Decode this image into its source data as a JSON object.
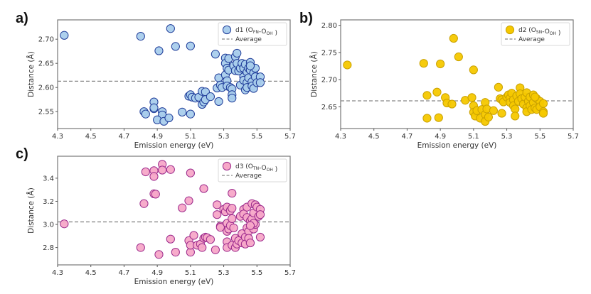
{
  "panels": [
    {
      "label": "a)"
    },
    {
      "label": "b)"
    },
    {
      "label": "c)"
    }
  ],
  "chart_data": [
    {
      "id": "a",
      "type": "scatter",
      "xlabel": "Emission energy (eV)",
      "ylabel": "Distance (Å)",
      "xlim": [
        4.3,
        5.7
      ],
      "ylim": [
        2.515,
        2.74
      ],
      "xticks": [
        "4.3",
        "4.5",
        "4.7",
        "4.9",
        "5.1",
        "5.3",
        "5.5",
        "5.7"
      ],
      "xtick_values": [
        4.3,
        4.5,
        4.7,
        4.9,
        5.1,
        5.3,
        5.5,
        5.7
      ],
      "yticks": [
        "2.55",
        "2.60",
        "2.65",
        "2.70"
      ],
      "ytick_values": [
        2.55,
        2.6,
        2.65,
        2.7
      ],
      "legend": {
        "position": "top-right",
        "series_label": "d1 (O",
        "sub1": "FN",
        "mid": "-O",
        "sub2": "OH",
        "end": " )",
        "average_label": "Average"
      },
      "average": 2.613,
      "colors": {
        "fill": "#a9cdec",
        "edge": "#1f3c99",
        "average": "#888888"
      },
      "grid": false,
      "points": [
        [
          4.34,
          2.708
        ],
        [
          4.8,
          2.706
        ],
        [
          4.98,
          2.722
        ],
        [
          4.91,
          2.676
        ],
        [
          5.01,
          2.685
        ],
        [
          5.1,
          2.686
        ],
        [
          4.88,
          2.57
        ],
        [
          4.82,
          2.55
        ],
        [
          4.83,
          2.545
        ],
        [
          4.88,
          2.556
        ],
        [
          4.88,
          2.558
        ],
        [
          4.93,
          2.55
        ],
        [
          4.93,
          2.543
        ],
        [
          4.9,
          2.533
        ],
        [
          4.94,
          2.53
        ],
        [
          4.97,
          2.537
        ],
        [
          5.05,
          2.549
        ],
        [
          5.1,
          2.545
        ],
        [
          5.09,
          2.582
        ],
        [
          5.1,
          2.585
        ],
        [
          5.11,
          2.58
        ],
        [
          5.13,
          2.578
        ],
        [
          5.15,
          2.58
        ],
        [
          5.17,
          2.592
        ],
        [
          5.17,
          2.565
        ],
        [
          5.18,
          2.57
        ],
        [
          5.19,
          2.591
        ],
        [
          5.19,
          2.575
        ],
        [
          5.22,
          2.581
        ],
        [
          5.25,
          2.669
        ],
        [
          5.26,
          2.599
        ],
        [
          5.27,
          2.62
        ],
        [
          5.27,
          2.571
        ],
        [
          5.28,
          2.605
        ],
        [
          5.29,
          2.6
        ],
        [
          5.31,
          2.661
        ],
        [
          5.31,
          2.65
        ],
        [
          5.31,
          2.626
        ],
        [
          5.32,
          2.64
        ],
        [
          5.32,
          2.614
        ],
        [
          5.32,
          2.603
        ],
        [
          5.33,
          2.66
        ],
        [
          5.33,
          2.636
        ],
        [
          5.34,
          2.6
        ],
        [
          5.35,
          2.597
        ],
        [
          5.35,
          2.585
        ],
        [
          5.35,
          2.578
        ],
        [
          5.36,
          2.645
        ],
        [
          5.37,
          2.664
        ],
        [
          5.37,
          2.635
        ],
        [
          5.38,
          2.671
        ],
        [
          5.38,
          2.65
        ],
        [
          5.39,
          2.634
        ],
        [
          5.4,
          2.64
        ],
        [
          5.4,
          2.605
        ],
        [
          5.41,
          2.65
        ],
        [
          5.42,
          2.64
        ],
        [
          5.42,
          2.622
        ],
        [
          5.42,
          2.615
        ],
        [
          5.43,
          2.595
        ],
        [
          5.43,
          2.648
        ],
        [
          5.44,
          2.632
        ],
        [
          5.44,
          2.61
        ],
        [
          5.44,
          2.6
        ],
        [
          5.45,
          2.64
        ],
        [
          5.45,
          2.62
        ],
        [
          5.46,
          2.652
        ],
        [
          5.46,
          2.636
        ],
        [
          5.47,
          2.612
        ],
        [
          5.47,
          2.603
        ],
        [
          5.48,
          2.63
        ],
        [
          5.48,
          2.598
        ],
        [
          5.49,
          2.64
        ],
        [
          5.49,
          2.622
        ],
        [
          5.5,
          2.61
        ],
        [
          5.52,
          2.622
        ],
        [
          5.52,
          2.61
        ],
        [
          5.46,
          2.645
        ]
      ]
    },
    {
      "id": "b",
      "type": "scatter",
      "xlabel": "Emission energy (eV)",
      "ylabel": "Distance (Å)",
      "xlim": [
        4.3,
        5.7
      ],
      "ylim": [
        2.61,
        2.81
      ],
      "xticks": [
        "4.3",
        "4.5",
        "4.7",
        "4.9",
        "5.1",
        "5.3",
        "5.5",
        "5.7"
      ],
      "xtick_values": [
        4.3,
        4.5,
        4.7,
        4.9,
        5.1,
        5.3,
        5.5,
        5.7
      ],
      "yticks": [
        "2.65",
        "2.70",
        "2.75",
        "2.80"
      ],
      "ytick_values": [
        2.65,
        2.7,
        2.75,
        2.8
      ],
      "legend": {
        "position": "top-right",
        "series_label": "d2 (O",
        "sub1": "SN",
        "mid": "-O",
        "sub2": "OH",
        "end": " )",
        "average_label": "Average"
      },
      "average": 2.661,
      "colors": {
        "fill": "#f5c800",
        "edge": "#c9a100",
        "average": "#888888"
      },
      "grid": false,
      "points": [
        [
          4.34,
          2.727
        ],
        [
          4.8,
          2.73
        ],
        [
          4.9,
          2.729
        ],
        [
          4.98,
          2.776
        ],
        [
          5.01,
          2.742
        ],
        [
          5.1,
          2.718
        ],
        [
          4.82,
          2.671
        ],
        [
          4.88,
          2.677
        ],
        [
          4.93,
          2.667
        ],
        [
          4.94,
          2.657
        ],
        [
          4.97,
          2.655
        ],
        [
          4.82,
          2.629
        ],
        [
          4.89,
          2.63
        ],
        [
          5.05,
          2.662
        ],
        [
          5.09,
          2.667
        ],
        [
          5.1,
          2.652
        ],
        [
          5.1,
          2.64
        ],
        [
          5.11,
          2.633
        ],
        [
          5.12,
          2.643
        ],
        [
          5.14,
          2.629
        ],
        [
          5.15,
          2.645
        ],
        [
          5.17,
          2.658
        ],
        [
          5.17,
          2.636
        ],
        [
          5.17,
          2.623
        ],
        [
          5.18,
          2.646
        ],
        [
          5.19,
          2.631
        ],
        [
          5.22,
          2.643
        ],
        [
          5.25,
          2.686
        ],
        [
          5.26,
          2.665
        ],
        [
          5.27,
          2.663
        ],
        [
          5.27,
          2.638
        ],
        [
          5.28,
          2.659
        ],
        [
          5.3,
          2.668
        ],
        [
          5.31,
          2.672
        ],
        [
          5.32,
          2.666
        ],
        [
          5.32,
          2.658
        ],
        [
          5.33,
          2.675
        ],
        [
          5.34,
          2.663
        ],
        [
          5.34,
          2.652
        ],
        [
          5.35,
          2.646
        ],
        [
          5.35,
          2.633
        ],
        [
          5.36,
          2.67
        ],
        [
          5.37,
          2.66
        ],
        [
          5.38,
          2.685
        ],
        [
          5.38,
          2.674
        ],
        [
          5.39,
          2.665
        ],
        [
          5.4,
          2.655
        ],
        [
          5.41,
          2.668
        ],
        [
          5.42,
          2.676
        ],
        [
          5.42,
          2.648
        ],
        [
          5.42,
          2.641
        ],
        [
          5.43,
          2.66
        ],
        [
          5.44,
          2.668
        ],
        [
          5.44,
          2.652
        ],
        [
          5.45,
          2.645
        ],
        [
          5.46,
          2.672
        ],
        [
          5.46,
          2.658
        ],
        [
          5.47,
          2.648
        ],
        [
          5.48,
          2.665
        ],
        [
          5.48,
          2.645
        ],
        [
          5.5,
          2.66
        ],
        [
          5.5,
          2.65
        ],
        [
          5.52,
          2.656
        ],
        [
          5.52,
          2.641
        ],
        [
          5.52,
          2.638
        ],
        [
          5.47,
          2.668
        ]
      ]
    },
    {
      "id": "c",
      "type": "scatter",
      "xlabel": "Emission energy (eV)",
      "ylabel": "Distance (Å)",
      "xlim": [
        4.3,
        5.7
      ],
      "ylim": [
        2.65,
        3.59
      ],
      "xticks": [
        "4.3",
        "4.5",
        "4.7",
        "4.9",
        "5.1",
        "5.3",
        "5.5",
        "5.7"
      ],
      "xtick_values": [
        4.3,
        4.5,
        4.7,
        4.9,
        5.1,
        5.3,
        5.5,
        5.7
      ],
      "yticks": [
        "2.8",
        "3.0",
        "3.2",
        "3.4"
      ],
      "ytick_values": [
        2.8,
        3.0,
        3.2,
        3.4
      ],
      "legend": {
        "position": "top-right",
        "series_label": "d3 (O",
        "sub1": "TN",
        "mid": "-O",
        "sub2": "OH",
        "end": " )",
        "average_label": "Average"
      },
      "average": 3.022,
      "colors": {
        "fill": "#f7a8c8",
        "edge": "#9c2a8c",
        "average": "#888888"
      },
      "grid": false,
      "points": [
        [
          4.34,
          3.005
        ],
        [
          4.83,
          3.455
        ],
        [
          4.88,
          3.465
        ],
        [
          4.88,
          3.415
        ],
        [
          4.93,
          3.52
        ],
        [
          4.93,
          3.47
        ],
        [
          4.98,
          3.475
        ],
        [
          5.1,
          3.445
        ],
        [
          4.88,
          3.265
        ],
        [
          4.89,
          3.262
        ],
        [
          4.82,
          3.18
        ],
        [
          5.05,
          3.143
        ],
        [
          5.09,
          3.205
        ],
        [
          5.18,
          3.31
        ],
        [
          5.35,
          3.27
        ],
        [
          4.8,
          2.8
        ],
        [
          4.91,
          2.74
        ],
        [
          4.98,
          2.873
        ],
        [
          5.01,
          2.76
        ],
        [
          5.09,
          2.86
        ],
        [
          5.1,
          2.76
        ],
        [
          5.1,
          2.82
        ],
        [
          5.12,
          2.905
        ],
        [
          5.14,
          2.82
        ],
        [
          5.16,
          2.83
        ],
        [
          5.17,
          2.8
        ],
        [
          5.18,
          2.88
        ],
        [
          5.19,
          2.89
        ],
        [
          5.2,
          2.885
        ],
        [
          5.22,
          2.87
        ],
        [
          5.25,
          2.78
        ],
        [
          5.26,
          3.17
        ],
        [
          5.26,
          3.085
        ],
        [
          5.28,
          2.985
        ],
        [
          5.28,
          2.975
        ],
        [
          5.3,
          3.13
        ],
        [
          5.31,
          3.11
        ],
        [
          5.32,
          3.15
        ],
        [
          5.32,
          3.01
        ],
        [
          5.32,
          2.94
        ],
        [
          5.32,
          2.85
        ],
        [
          5.32,
          2.8
        ],
        [
          5.33,
          2.96
        ],
        [
          5.34,
          3.12
        ],
        [
          5.34,
          2.99
        ],
        [
          5.35,
          3.14
        ],
        [
          5.35,
          3.05
        ],
        [
          5.35,
          2.82
        ],
        [
          5.36,
          2.97
        ],
        [
          5.37,
          2.88
        ],
        [
          5.37,
          2.8
        ],
        [
          5.38,
          2.83
        ],
        [
          5.39,
          2.86
        ],
        [
          5.4,
          3.07
        ],
        [
          5.41,
          2.92
        ],
        [
          5.41,
          2.84
        ],
        [
          5.42,
          3.13
        ],
        [
          5.42,
          3.09
        ],
        [
          5.43,
          2.89
        ],
        [
          5.43,
          2.83
        ],
        [
          5.44,
          3.15
        ],
        [
          5.44,
          3.06
        ],
        [
          5.44,
          2.97
        ],
        [
          5.45,
          2.94
        ],
        [
          5.45,
          2.88
        ],
        [
          5.46,
          3.03
        ],
        [
          5.46,
          2.84
        ],
        [
          5.47,
          3.18
        ],
        [
          5.47,
          3.05
        ],
        [
          5.48,
          2.96
        ],
        [
          5.48,
          3.1
        ],
        [
          5.49,
          3.0
        ],
        [
          5.49,
          3.17
        ],
        [
          5.5,
          3.15
        ],
        [
          5.51,
          3.07
        ],
        [
          5.52,
          3.13
        ],
        [
          5.52,
          3.085
        ],
        [
          5.52,
          2.89
        ],
        [
          5.48,
          3.01
        ],
        [
          5.46,
          2.99
        ]
      ]
    }
  ]
}
